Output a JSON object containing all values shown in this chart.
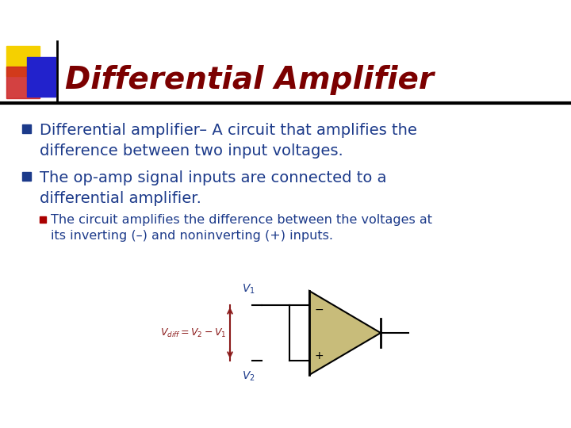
{
  "title": "Differential Amplifier",
  "title_color": "#7B0000",
  "title_fontsize": 28,
  "bg_color": "#FFFFFF",
  "header_line_color": "#000000",
  "bullet_color": "#1C3A8A",
  "bullet1_blue": "Differential amplifier",
  "bullet1_rest": " – A circuit that amplifies the",
  "bullet1_line2": "difference between two input voltages.",
  "bullet2_line1": "The op-amp signal inputs are connected to a",
  "bullet2_line2": "differential amplifier.",
  "subbullet_line1": "The circuit amplifies the difference between the voltages at",
  "subbullet_line2": "its inverting (–) and noninverting (+) inputs.",
  "sq_yellow": "#F5D000",
  "sq_red": "#CC2020",
  "sq_blue": "#2222CC",
  "sub_bullet_marker_color": "#AA0000",
  "opamp_fill": "#C8BC7A",
  "opamp_edge": "#000000",
  "arrow_red": "#8B1A1A",
  "circuit_line": "#000000",
  "vdiff_label_color": "#8B1A1A",
  "v_label_color": "#1C3A8A",
  "font": "DejaVu Sans"
}
